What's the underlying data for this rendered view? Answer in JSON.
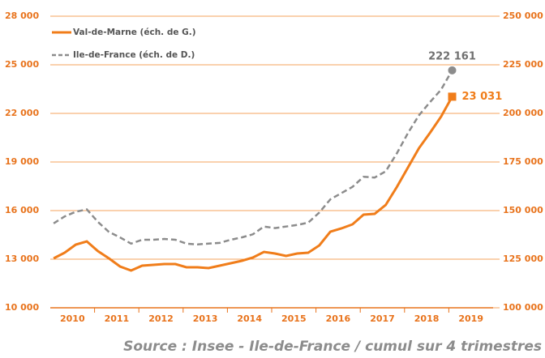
{
  "chart_data": {
    "type": "line",
    "source": "Source : Insee - Ile-de-France / cumul sur 4 trimestres",
    "year_labels": [
      "2010",
      "2011",
      "2012",
      "2013",
      "2014",
      "2015",
      "2016",
      "2017",
      "2018",
      "2019"
    ],
    "ylim": [
      10000,
      28000
    ],
    "yticks": [
      {
        "value": 10000,
        "label": "10 000"
      },
      {
        "value": 13000,
        "label": "13 000"
      },
      {
        "value": 16000,
        "label": "16 000"
      },
      {
        "value": 19000,
        "label": "19 000"
      },
      {
        "value": 22000,
        "label": "22 000"
      },
      {
        "value": 25000,
        "label": "25 000"
      },
      {
        "value": 28000,
        "label": "28 000"
      }
    ],
    "y2lim": [
      100000,
      250000
    ],
    "y2ticks": [
      {
        "value": 100000,
        "label": "100 000"
      },
      {
        "value": 125000,
        "label": "125 000"
      },
      {
        "value": 150000,
        "label": "150 000"
      },
      {
        "value": 175000,
        "label": "175 000"
      },
      {
        "value": 200000,
        "label": "200 000"
      },
      {
        "value": 225000,
        "label": "225 000"
      },
      {
        "value": 250000,
        "label": "250 000"
      }
    ],
    "grid": true,
    "legend": "top-left",
    "series": [
      {
        "name": "Val-de-Marne (éch. de G.)",
        "color": "#f07d1a",
        "dash": false,
        "marker": "square",
        "values": [
          13050,
          13400,
          13900,
          14100,
          13500,
          13050,
          12550,
          12300,
          12600,
          12650,
          12700,
          12700,
          12500,
          12500,
          12450,
          12600,
          12750,
          12900,
          13100,
          13450,
          13350,
          13200,
          13350,
          13400,
          13850,
          14700,
          14900,
          15150,
          15750,
          15800,
          16350,
          17450,
          18650,
          19850,
          20800,
          21800,
          23031
        ],
        "value_labels": [
          null,
          null,
          null,
          null,
          null,
          null,
          null,
          null,
          null,
          null,
          null,
          null,
          null,
          null,
          null,
          null,
          null,
          null,
          null,
          null,
          null,
          null,
          null,
          null,
          null,
          null,
          null,
          null,
          null,
          null,
          null,
          null,
          null,
          null,
          null,
          null,
          "23 031"
        ]
      },
      {
        "name": "Ile-de-France (éch. de D.)",
        "color": "#8c8c8c",
        "dash": true,
        "marker": "circle",
        "axis": "y2",
        "values": [
          143400,
          147000,
          149400,
          150600,
          144200,
          139000,
          136200,
          133000,
          135000,
          135000,
          135400,
          135000,
          133000,
          132600,
          133000,
          133400,
          135000,
          136200,
          137800,
          141800,
          141000,
          141800,
          142600,
          143800,
          149000,
          155800,
          159000,
          162200,
          167400,
          167000,
          170200,
          179400,
          189800,
          199000,
          205800,
          212200,
          222161
        ],
        "value_labels": [
          null,
          null,
          null,
          null,
          null,
          null,
          null,
          null,
          null,
          null,
          null,
          null,
          null,
          null,
          null,
          null,
          null,
          null,
          null,
          null,
          null,
          null,
          null,
          null,
          null,
          null,
          null,
          null,
          null,
          null,
          null,
          null,
          null,
          null,
          null,
          null,
          "222 161"
        ]
      }
    ]
  }
}
